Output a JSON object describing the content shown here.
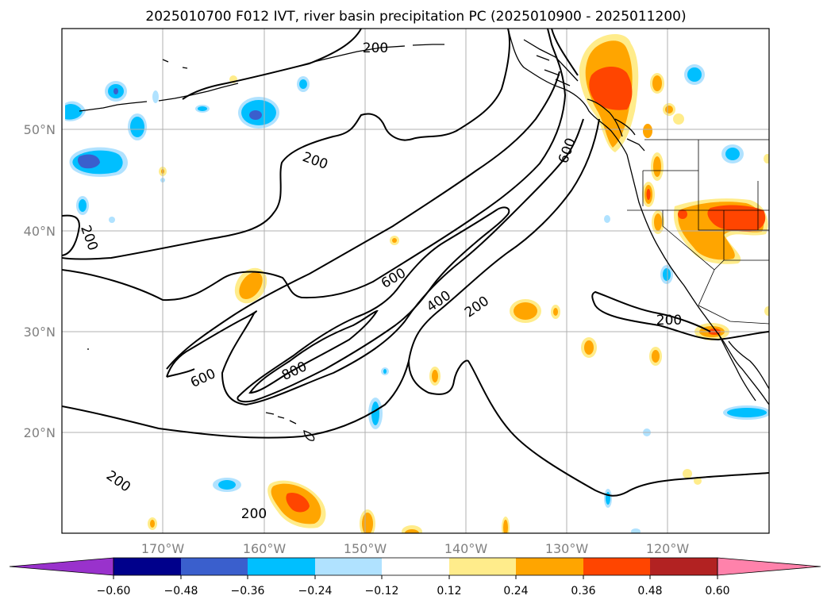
{
  "title": "2025010700 F012 IVT, river basin precipitation PC (2025010900 - 2025011200)",
  "map": {
    "lon_range": [
      -180,
      -110
    ],
    "lat_range": [
      10,
      60
    ],
    "grid_lons": [
      -170,
      -160,
      -150,
      -140,
      -130,
      -120
    ],
    "grid_lats": [
      20,
      30,
      40,
      50
    ],
    "lon_labels": [
      "170°W",
      "160°W",
      "150°W",
      "140°W",
      "130°W",
      "120°W"
    ],
    "lat_labels": [
      "20°N",
      "30°N",
      "40°N",
      "50°N"
    ]
  },
  "ivt_contour_labels": [
    "200",
    "200",
    "200",
    "200",
    "200",
    "200",
    "200",
    "600",
    "600",
    "600",
    "400",
    "800"
  ],
  "colorbar": {
    "tick_labels": [
      "−0.60",
      "−0.48",
      "−0.36",
      "−0.24",
      "−0.12",
      "0.12",
      "0.24",
      "0.36",
      "0.48",
      "0.60"
    ],
    "colors": [
      "#9932cc",
      "#00008b",
      "#3a5fcd",
      "#00bfff",
      "#b0e2ff",
      "#ffffff",
      "#ffec8b",
      "#ffa500",
      "#ff4500",
      "#b22222",
      "#ff82ab"
    ]
  }
}
